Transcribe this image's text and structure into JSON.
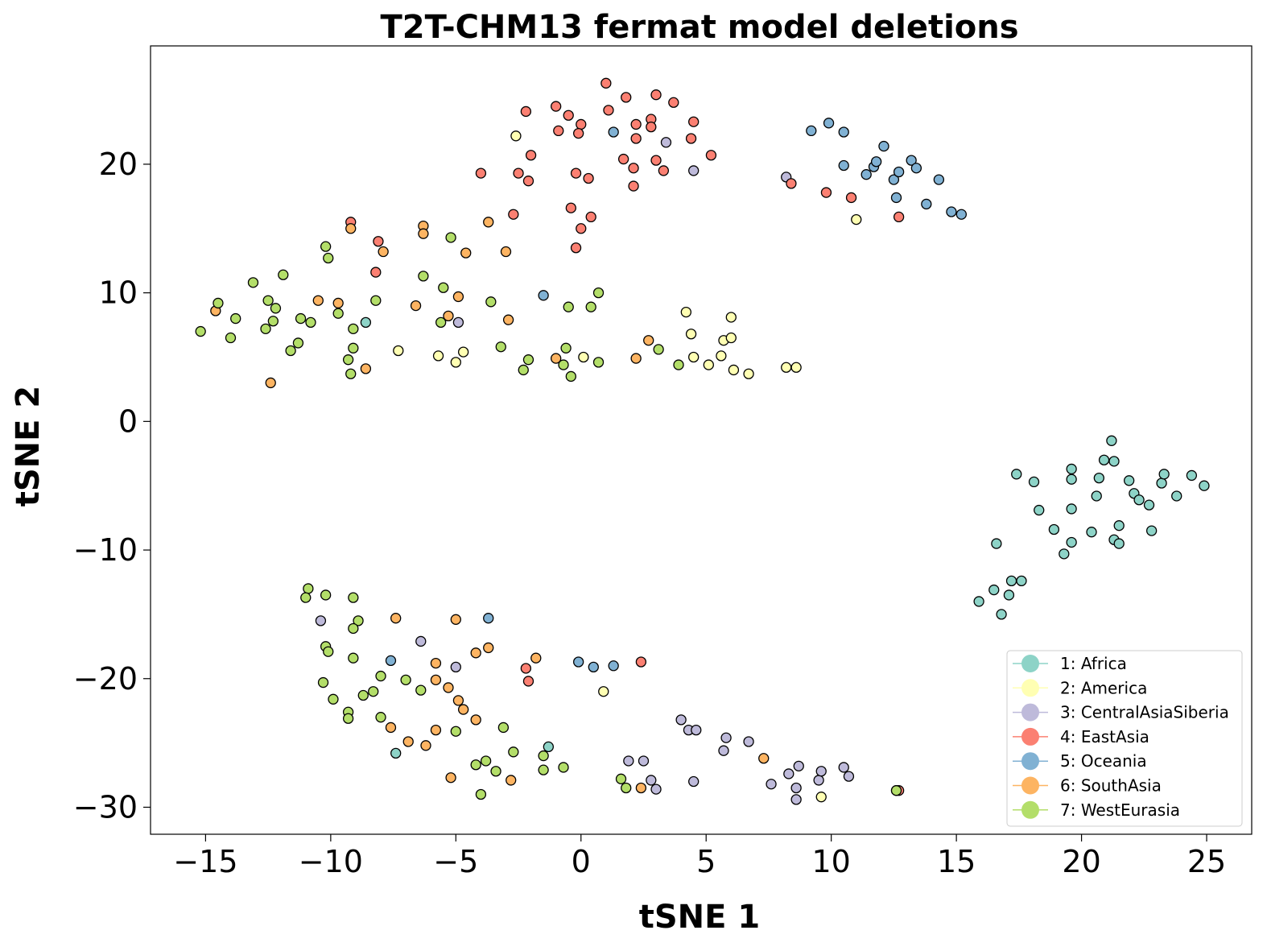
{
  "chart_data": {
    "type": "scatter",
    "title": "T2T-CHM13 fermat model deletions",
    "xlabel": "tSNE 1",
    "ylabel": "tSNE 2",
    "xlim": [
      -17.2,
      26.8
    ],
    "ylim": [
      -32.1,
      29.2
    ],
    "xticks": [
      -15,
      -10,
      -5,
      0,
      5,
      10,
      15,
      20,
      25
    ],
    "yticks": [
      -30,
      -20,
      -10,
      0,
      10,
      20
    ],
    "xtick_labels": [
      "−15",
      "−10",
      "−5",
      "0",
      "5",
      "10",
      "15",
      "20",
      "25"
    ],
    "ytick_labels": [
      "−30",
      "−20",
      "−10",
      "0",
      "10",
      "20"
    ],
    "grid": false,
    "legend_position": "bottom-right",
    "series": [
      {
        "name": "1: Africa",
        "color": "#8dd3c7",
        "points": [
          [
            17.4,
            -4.1
          ],
          [
            18.1,
            -4.7
          ],
          [
            18.3,
            -6.9
          ],
          [
            18.9,
            -8.4
          ],
          [
            19.3,
            -10.3
          ],
          [
            19.6,
            -9.4
          ],
          [
            19.6,
            -6.8
          ],
          [
            19.6,
            -4.5
          ],
          [
            19.6,
            -3.7
          ],
          [
            20.4,
            -8.6
          ],
          [
            20.6,
            -5.8
          ],
          [
            20.7,
            -4.4
          ],
          [
            20.9,
            -3.0
          ],
          [
            21.2,
            -1.5
          ],
          [
            21.3,
            -3.1
          ],
          [
            21.3,
            -9.2
          ],
          [
            21.5,
            -8.1
          ],
          [
            21.5,
            -9.5
          ],
          [
            21.9,
            -4.6
          ],
          [
            22.1,
            -5.6
          ],
          [
            22.3,
            -6.1
          ],
          [
            22.7,
            -6.5
          ],
          [
            22.8,
            -8.5
          ],
          [
            23.2,
            -4.8
          ],
          [
            23.3,
            -4.1
          ],
          [
            23.8,
            -5.8
          ],
          [
            24.4,
            -4.2
          ],
          [
            24.9,
            -5.0
          ],
          [
            16.6,
            -9.5
          ],
          [
            17.2,
            -12.4
          ],
          [
            17.6,
            -12.4
          ],
          [
            16.5,
            -13.1
          ],
          [
            17.1,
            -13.5
          ],
          [
            15.9,
            -14.0
          ],
          [
            16.8,
            -15.0
          ],
          [
            -8.6,
            7.7
          ],
          [
            -7.4,
            -25.8
          ],
          [
            -1.3,
            -25.3
          ],
          [
            12.6,
            -28.7
          ]
        ]
      },
      {
        "name": "2: America",
        "color": "#ffffb3",
        "points": [
          [
            -2.6,
            22.2
          ],
          [
            11.0,
            15.7
          ],
          [
            4.2,
            8.5
          ],
          [
            6.0,
            8.1
          ],
          [
            4.4,
            6.8
          ],
          [
            5.7,
            6.3
          ],
          [
            6.0,
            6.5
          ],
          [
            4.5,
            5.0
          ],
          [
            5.6,
            5.1
          ],
          [
            5.1,
            4.4
          ],
          [
            6.1,
            4.0
          ],
          [
            6.7,
            3.7
          ],
          [
            8.2,
            4.2
          ],
          [
            8.6,
            4.2
          ],
          [
            -7.3,
            5.5
          ],
          [
            -5.7,
            5.1
          ],
          [
            -5.0,
            4.6
          ],
          [
            -4.7,
            5.4
          ],
          [
            0.1,
            5.0
          ],
          [
            0.9,
            -21.0
          ],
          [
            9.6,
            -29.2
          ]
        ]
      },
      {
        "name": "3: CentralAsiaSiberia",
        "color": "#bebada",
        "points": [
          [
            3.4,
            21.7
          ],
          [
            4.5,
            19.5
          ],
          [
            8.2,
            19.0
          ],
          [
            -4.9,
            7.7
          ],
          [
            -10.4,
            -15.5
          ],
          [
            -6.4,
            -17.1
          ],
          [
            -5.0,
            -19.1
          ],
          [
            4.0,
            -23.2
          ],
          [
            4.3,
            -24.0
          ],
          [
            4.6,
            -24.0
          ],
          [
            5.8,
            -24.6
          ],
          [
            6.7,
            -24.9
          ],
          [
            5.7,
            -25.6
          ],
          [
            1.9,
            -26.4
          ],
          [
            2.5,
            -26.4
          ],
          [
            2.8,
            -27.9
          ],
          [
            3.0,
            -28.6
          ],
          [
            4.5,
            -28.0
          ],
          [
            7.6,
            -28.2
          ],
          [
            8.3,
            -27.4
          ],
          [
            8.7,
            -26.8
          ],
          [
            8.6,
            -28.5
          ],
          [
            8.6,
            -29.4
          ],
          [
            9.5,
            -27.9
          ],
          [
            9.6,
            -27.2
          ],
          [
            10.5,
            -26.9
          ],
          [
            10.7,
            -27.6
          ]
        ]
      },
      {
        "name": "4: EastAsia",
        "color": "#fb8072",
        "points": [
          [
            1.0,
            26.3
          ],
          [
            1.1,
            24.2
          ],
          [
            1.8,
            25.2
          ],
          [
            3.0,
            25.4
          ],
          [
            3.7,
            24.8
          ],
          [
            -1.0,
            24.5
          ],
          [
            -2.2,
            24.1
          ],
          [
            -0.5,
            23.8
          ],
          [
            0.0,
            23.1
          ],
          [
            2.2,
            23.1
          ],
          [
            2.8,
            23.5
          ],
          [
            2.8,
            22.9
          ],
          [
            4.5,
            23.3
          ],
          [
            -0.9,
            22.6
          ],
          [
            -0.1,
            22.4
          ],
          [
            2.2,
            22.0
          ],
          [
            4.4,
            22.0
          ],
          [
            -2.0,
            20.7
          ],
          [
            1.7,
            20.4
          ],
          [
            3.0,
            20.3
          ],
          [
            5.2,
            20.7
          ],
          [
            2.1,
            19.7
          ],
          [
            3.3,
            19.5
          ],
          [
            -4.0,
            19.3
          ],
          [
            -2.5,
            19.3
          ],
          [
            -0.2,
            19.3
          ],
          [
            0.3,
            18.9
          ],
          [
            -2.1,
            18.7
          ],
          [
            2.1,
            18.3
          ],
          [
            -0.4,
            16.6
          ],
          [
            -2.7,
            16.1
          ],
          [
            0.4,
            15.9
          ],
          [
            0.0,
            15.0
          ],
          [
            -0.2,
            13.5
          ],
          [
            8.4,
            18.5
          ],
          [
            9.8,
            17.8
          ],
          [
            10.8,
            17.4
          ],
          [
            12.7,
            15.9
          ],
          [
            -9.2,
            15.5
          ],
          [
            -8.1,
            14.0
          ],
          [
            -8.2,
            11.6
          ],
          [
            -2.2,
            -19.2
          ],
          [
            -2.1,
            -20.2
          ],
          [
            2.4,
            -18.7
          ],
          [
            12.7,
            -28.7
          ]
        ]
      },
      {
        "name": "5: Oceania",
        "color": "#80b1d3",
        "points": [
          [
            9.2,
            22.6
          ],
          [
            9.9,
            23.2
          ],
          [
            10.5,
            22.5
          ],
          [
            1.3,
            22.5
          ],
          [
            10.5,
            19.9
          ],
          [
            11.4,
            19.2
          ],
          [
            11.7,
            19.8
          ],
          [
            11.8,
            20.2
          ],
          [
            12.1,
            21.4
          ],
          [
            12.5,
            18.8
          ],
          [
            12.7,
            19.4
          ],
          [
            13.2,
            20.3
          ],
          [
            13.4,
            19.7
          ],
          [
            14.3,
            18.8
          ],
          [
            12.6,
            17.4
          ],
          [
            13.8,
            16.9
          ],
          [
            14.8,
            16.3
          ],
          [
            15.2,
            16.1
          ],
          [
            -1.5,
            9.8
          ],
          [
            -3.7,
            -15.3
          ],
          [
            -7.6,
            -18.6
          ],
          [
            -0.1,
            -18.7
          ],
          [
            0.5,
            -19.1
          ],
          [
            1.3,
            -19.0
          ]
        ]
      },
      {
        "name": "6: SouthAsia",
        "color": "#fdb462",
        "points": [
          [
            -6.3,
            15.2
          ],
          [
            -6.3,
            14.6
          ],
          [
            -3.7,
            15.5
          ],
          [
            -9.2,
            15.0
          ],
          [
            -7.9,
            13.2
          ],
          [
            -4.6,
            13.1
          ],
          [
            -3.0,
            13.2
          ],
          [
            -14.6,
            8.6
          ],
          [
            -10.5,
            9.4
          ],
          [
            -9.7,
            9.2
          ],
          [
            -6.6,
            9.0
          ],
          [
            -4.9,
            9.7
          ],
          [
            -5.3,
            8.2
          ],
          [
            -2.9,
            7.9
          ],
          [
            2.7,
            6.3
          ],
          [
            -1.0,
            4.9
          ],
          [
            2.2,
            4.9
          ],
          [
            -8.6,
            4.1
          ],
          [
            -12.4,
            3.0
          ],
          [
            -7.4,
            -15.3
          ],
          [
            -5.0,
            -15.4
          ],
          [
            -3.7,
            -17.6
          ],
          [
            -4.2,
            -18.0
          ],
          [
            -1.8,
            -18.4
          ],
          [
            -5.8,
            -18.8
          ],
          [
            -5.8,
            -20.1
          ],
          [
            -5.3,
            -20.7
          ],
          [
            -4.9,
            -21.7
          ],
          [
            -4.7,
            -22.4
          ],
          [
            -4.2,
            -23.2
          ],
          [
            -7.6,
            -23.8
          ],
          [
            -5.8,
            -24.0
          ],
          [
            -6.9,
            -24.9
          ],
          [
            -6.2,
            -25.2
          ],
          [
            -5.2,
            -27.7
          ],
          [
            -2.8,
            -27.9
          ],
          [
            7.3,
            -26.2
          ],
          [
            2.4,
            -28.5
          ]
        ]
      },
      {
        "name": "7: WestEurasia",
        "color": "#b3de69",
        "points": [
          [
            -15.2,
            7.0
          ],
          [
            -14.5,
            9.2
          ],
          [
            -13.8,
            8.0
          ],
          [
            -13.1,
            10.8
          ],
          [
            -14.0,
            6.5
          ],
          [
            -12.5,
            9.4
          ],
          [
            -12.2,
            8.8
          ],
          [
            -11.9,
            11.4
          ],
          [
            -12.3,
            7.8
          ],
          [
            -12.6,
            7.2
          ],
          [
            -11.6,
            5.5
          ],
          [
            -11.3,
            6.1
          ],
          [
            -11.2,
            8.0
          ],
          [
            -10.8,
            7.7
          ],
          [
            -10.2,
            13.6
          ],
          [
            -10.1,
            12.7
          ],
          [
            -9.7,
            8.4
          ],
          [
            -9.1,
            7.2
          ],
          [
            -9.3,
            4.8
          ],
          [
            -9.2,
            3.7
          ],
          [
            -9.1,
            5.7
          ],
          [
            -8.2,
            9.4
          ],
          [
            -5.2,
            14.3
          ],
          [
            -6.3,
            11.3
          ],
          [
            -5.5,
            10.4
          ],
          [
            -5.6,
            7.7
          ],
          [
            -3.6,
            9.3
          ],
          [
            -3.2,
            5.8
          ],
          [
            -2.1,
            4.8
          ],
          [
            -2.3,
            4.0
          ],
          [
            -0.6,
            5.7
          ],
          [
            -0.5,
            8.9
          ],
          [
            -0.7,
            4.4
          ],
          [
            -0.4,
            3.5
          ],
          [
            0.4,
            8.9
          ],
          [
            0.7,
            10.0
          ],
          [
            0.7,
            4.6
          ],
          [
            3.1,
            5.6
          ],
          [
            3.9,
            4.4
          ],
          [
            -10.9,
            -13.0
          ],
          [
            -11.0,
            -13.7
          ],
          [
            -10.2,
            -13.5
          ],
          [
            -9.1,
            -13.7
          ],
          [
            -8.9,
            -15.5
          ],
          [
            -9.1,
            -16.1
          ],
          [
            -10.2,
            -17.5
          ],
          [
            -10.1,
            -17.9
          ],
          [
            -9.1,
            -18.4
          ],
          [
            -10.3,
            -20.3
          ],
          [
            -8.0,
            -19.8
          ],
          [
            -7.0,
            -20.1
          ],
          [
            -6.4,
            -20.9
          ],
          [
            -8.3,
            -21.0
          ],
          [
            -8.7,
            -21.3
          ],
          [
            -9.9,
            -21.6
          ],
          [
            -9.3,
            -22.6
          ],
          [
            -9.3,
            -23.1
          ],
          [
            -8.0,
            -23.0
          ],
          [
            -5.0,
            -24.1
          ],
          [
            -3.1,
            -23.8
          ],
          [
            -2.7,
            -25.7
          ],
          [
            -3.8,
            -26.4
          ],
          [
            -4.2,
            -26.7
          ],
          [
            -3.4,
            -27.2
          ],
          [
            -4.0,
            -29.0
          ],
          [
            -1.5,
            -26.0
          ],
          [
            -1.5,
            -27.1
          ],
          [
            -0.7,
            -26.9
          ],
          [
            1.6,
            -27.8
          ],
          [
            1.8,
            -28.5
          ],
          [
            12.6,
            -28.7
          ]
        ]
      }
    ]
  }
}
